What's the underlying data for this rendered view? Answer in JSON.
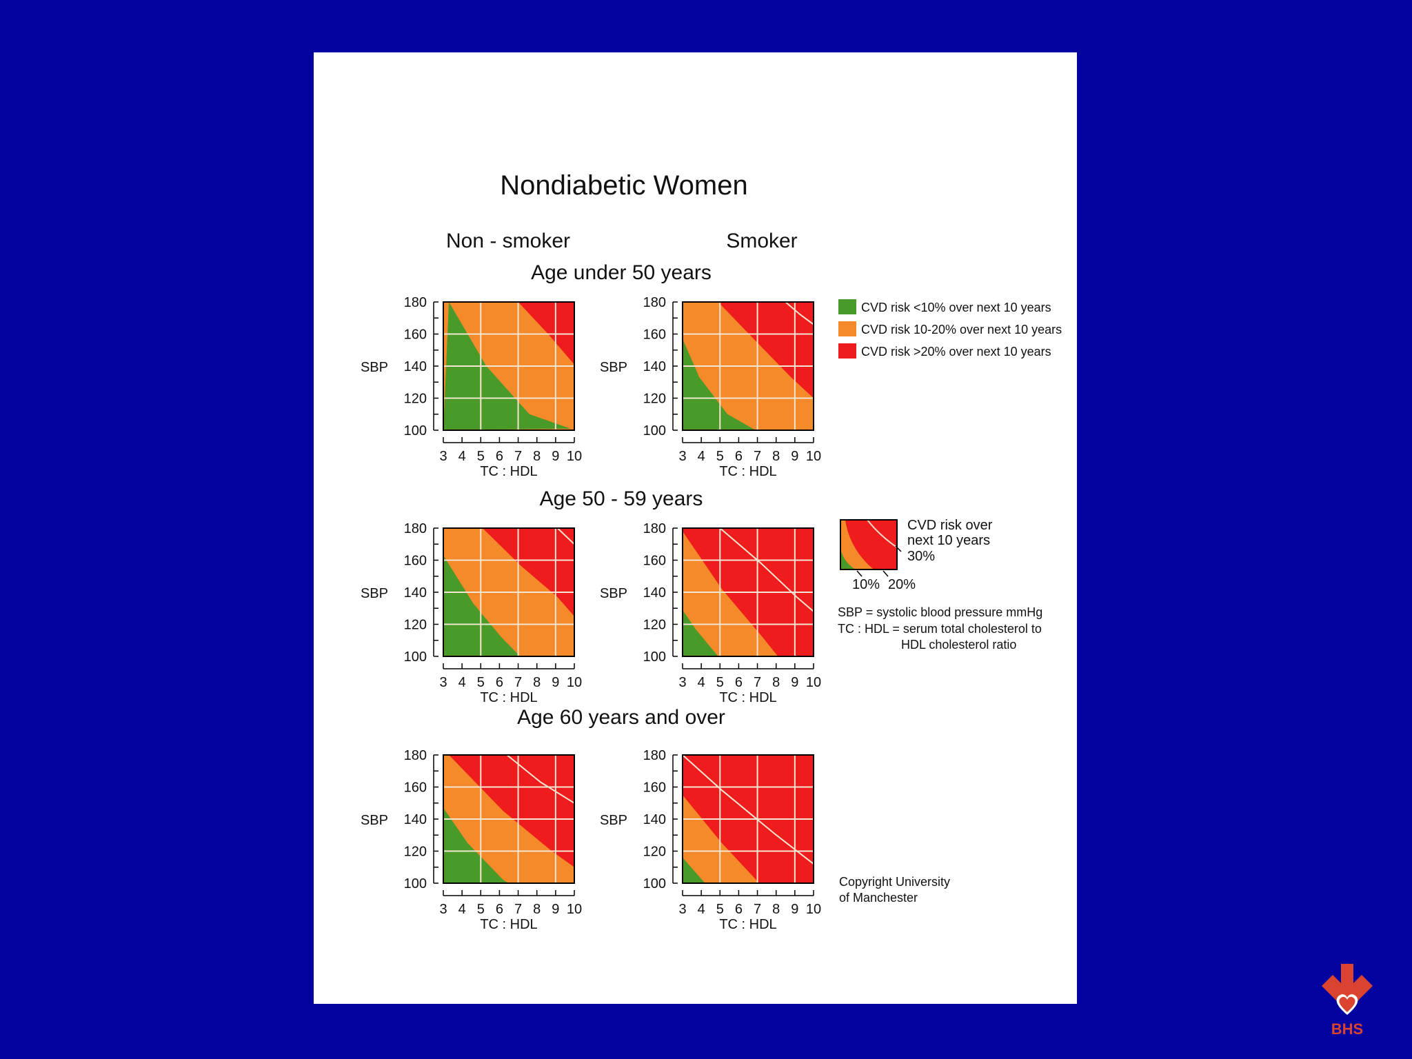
{
  "title": "Nondiabetic Women",
  "column_headers": [
    "Non - smoker",
    "Smoker"
  ],
  "row_headers": [
    "Age under 50 years",
    "Age 50 - 59 years",
    "Age 60 years and over"
  ],
  "legend": [
    {
      "label": "CVD risk <10% over next 10 years",
      "color": "#4a9a2a"
    },
    {
      "label": "CVD risk 10-20% over next 10 years",
      "color": "#f58a2a"
    },
    {
      "label": "CVD risk >20% over next 10 years",
      "color": "#ee1c1c"
    }
  ],
  "key": {
    "caption_lines": [
      "CVD risk over",
      "next 10 years",
      "30%"
    ],
    "labels": [
      "10%",
      "20%"
    ]
  },
  "definitions": [
    "SBP = systolic blood pressure mmHg",
    "TC : HDL = serum total cholesterol to",
    "HDL cholesterol ratio"
  ],
  "copyright": [
    "Copyright University",
    "of Manchester"
  ],
  "logo_text": "BHS",
  "colors": {
    "background": "#0202a0",
    "green": "#4a9a2a",
    "orange": "#f58a2a",
    "red": "#ee1c1c",
    "logo": "#d9432f"
  },
  "chart_data": {
    "type": "heatmap",
    "xlabel": "TC : HDL",
    "ylabel": "SBP",
    "xticks": [
      3,
      4,
      5,
      6,
      7,
      8,
      9,
      10
    ],
    "yticks": [
      100,
      120,
      140,
      160,
      180
    ],
    "xlim": [
      3,
      10
    ],
    "ylim": [
      100,
      180
    ],
    "contour_levels": [
      "10%",
      "20%",
      "30%"
    ],
    "panels": [
      {
        "age": "Age under 50 years",
        "smoking": "Non - smoker",
        "contours": {
          "10%": [
            [
              3.3,
              180
            ],
            [
              5.3,
              140
            ],
            [
              7.6,
              110
            ],
            [
              9.8,
              101
            ]
          ],
          "20%": [
            [
              7.0,
              180
            ],
            [
              8.6,
              160
            ],
            [
              10,
              141
            ]
          ],
          "30%": []
        }
      },
      {
        "age": "Age under 50 years",
        "smoking": "Smoker",
        "contours": {
          "10%": [
            [
              3,
              157
            ],
            [
              3.9,
              133
            ],
            [
              5.4,
              110
            ],
            [
              6.9,
              100
            ]
          ],
          "20%": [
            [
              4.9,
              180
            ],
            [
              6.8,
              157
            ],
            [
              8.8,
              133
            ],
            [
              10,
              120
            ]
          ],
          "30%": [
            [
              8.5,
              180
            ],
            [
              9.3,
              172
            ],
            [
              10,
              166
            ]
          ]
        }
      },
      {
        "age": "Age 50 - 59 years",
        "smoking": "Non - smoker",
        "contours": {
          "10%": [
            [
              3,
              163
            ],
            [
              4.6,
              133
            ],
            [
              6.1,
              112
            ],
            [
              7.1,
              100
            ]
          ],
          "20%": [
            [
              5.1,
              180
            ],
            [
              7.1,
              157
            ],
            [
              9.1,
              137
            ],
            [
              10,
              125
            ]
          ],
          "30%": [
            [
              9.1,
              180
            ],
            [
              10,
              170
            ]
          ]
        }
      },
      {
        "age": "Age 50 - 59 years",
        "smoking": "Smoker",
        "contours": {
          "10%": [
            [
              3,
              129
            ],
            [
              3.7,
              117
            ],
            [
              4.9,
              100
            ]
          ],
          "20%": [
            [
              3,
              178
            ],
            [
              5.1,
              142
            ],
            [
              7.2,
              113
            ],
            [
              8.1,
              100
            ]
          ],
          "30%": [
            [
              5.0,
              180
            ],
            [
              7.2,
              158
            ],
            [
              9.1,
              137
            ],
            [
              10,
              128
            ]
          ]
        }
      },
      {
        "age": "Age 60 years and over",
        "smoking": "Non - smoker",
        "contours": {
          "10%": [
            [
              3,
              147
            ],
            [
              4.3,
              125
            ],
            [
              6.2,
              102
            ],
            [
              6.5,
              100
            ]
          ],
          "20%": [
            [
              3.3,
              180
            ],
            [
              6.2,
              145
            ],
            [
              8.8,
              120
            ],
            [
              10,
              110
            ]
          ],
          "30%": [
            [
              6.4,
              180
            ],
            [
              8.2,
              163
            ],
            [
              10,
              150
            ]
          ]
        }
      },
      {
        "age": "Age 60 years and over",
        "smoking": "Smoker",
        "contours": {
          "10%": [
            [
              3,
              116
            ],
            [
              4.2,
              100
            ]
          ],
          "20%": [
            [
              3,
              155
            ],
            [
              5.1,
              125
            ],
            [
              7.1,
              100
            ]
          ],
          "30%": [
            [
              3,
              180
            ],
            [
              5.1,
              158
            ],
            [
              7.9,
              131
            ],
            [
              10,
              112
            ]
          ]
        }
      }
    ]
  }
}
